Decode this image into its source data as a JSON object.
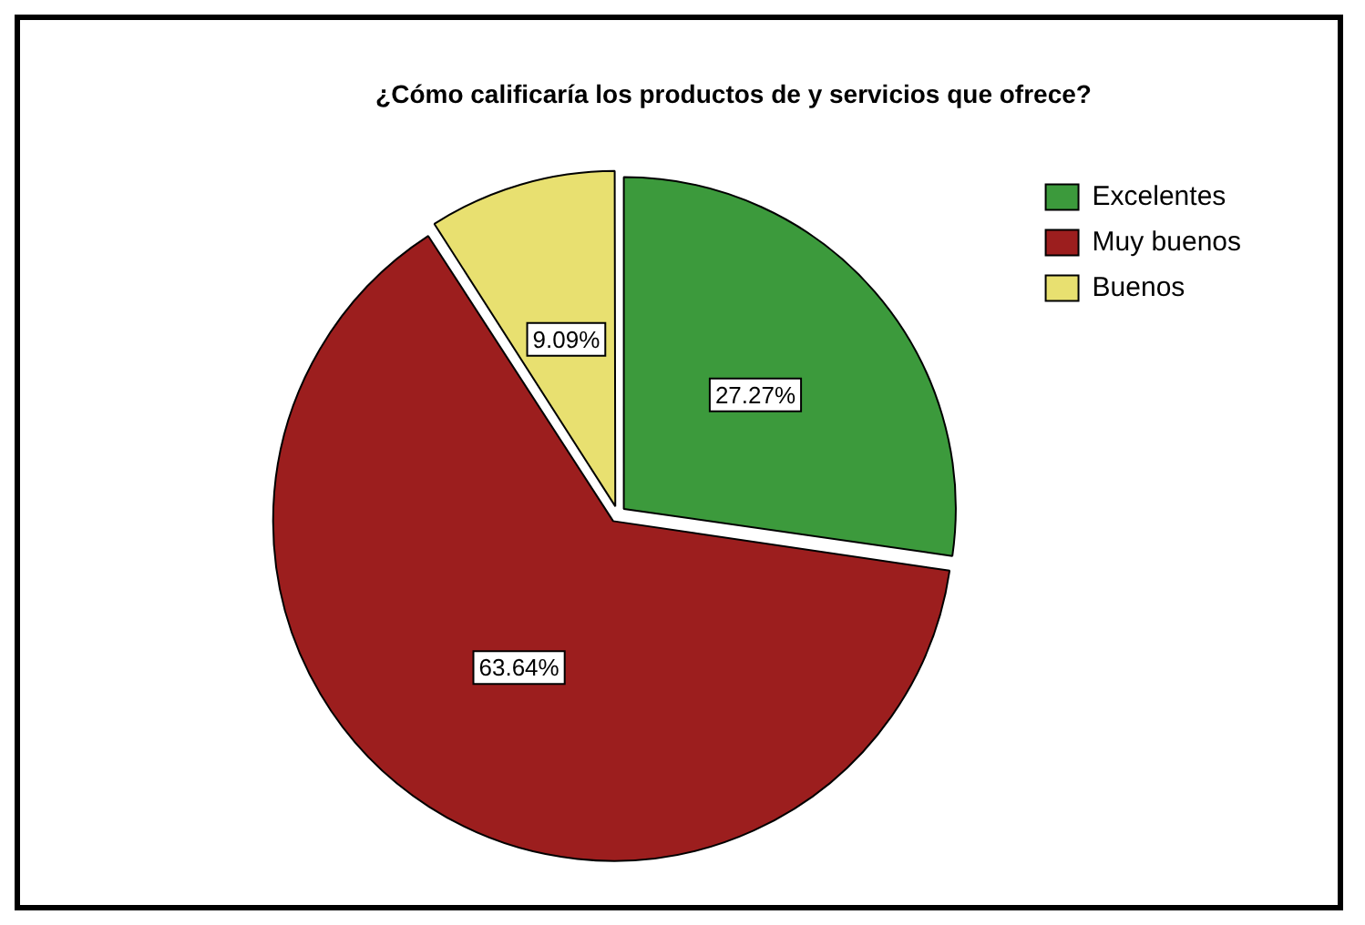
{
  "chart_data": {
    "type": "pie",
    "title": "¿Cómo calificaría los productos de y servicios que ofrece?",
    "categories": [
      "Excelentes",
      "Muy buenos",
      "Buenos"
    ],
    "values": [
      27.27,
      63.64,
      9.09
    ],
    "value_labels": [
      "27.27%",
      "63.64%",
      "9.09%"
    ],
    "colors": [
      "#3c9a3c",
      "#9c1e1e",
      "#e8e070"
    ],
    "legend": "right"
  }
}
